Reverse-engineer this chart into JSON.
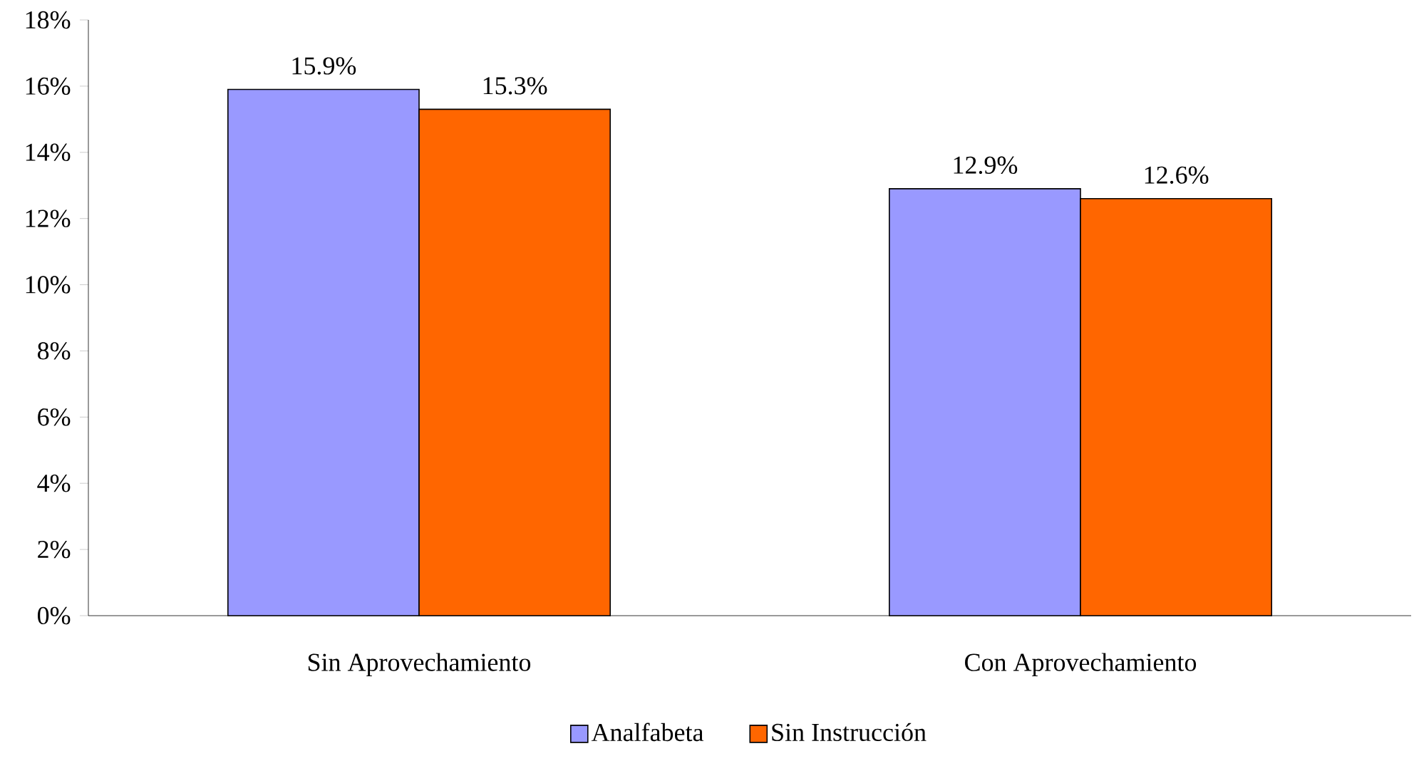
{
  "chart_data": {
    "type": "bar",
    "categories": [
      "Sin Aprovechamiento",
      "Con Aprovechamiento"
    ],
    "series": [
      {
        "name": "Analfabeta",
        "color": "#9999ff",
        "values": [
          15.9,
          12.9
        ],
        "value_labels": [
          "15.9%",
          "12.9%"
        ]
      },
      {
        "name": "Sin Instrucción",
        "color": "#ff6600",
        "values": [
          15.3,
          12.6
        ],
        "value_labels": [
          "15.3%",
          "12.6%"
        ]
      }
    ],
    "ylim": [
      0,
      18
    ],
    "yticks": [
      {
        "value": 0,
        "label": "0%"
      },
      {
        "value": 2,
        "label": "2%"
      },
      {
        "value": 4,
        "label": "4%"
      },
      {
        "value": 6,
        "label": "6%"
      },
      {
        "value": 8,
        "label": "8%"
      },
      {
        "value": 10,
        "label": "10%"
      },
      {
        "value": 12,
        "label": "12%"
      },
      {
        "value": 14,
        "label": "14%"
      },
      {
        "value": 16,
        "label": "16%"
      },
      {
        "value": 18,
        "label": "18%"
      }
    ],
    "grid": false,
    "legend": "bottom"
  }
}
